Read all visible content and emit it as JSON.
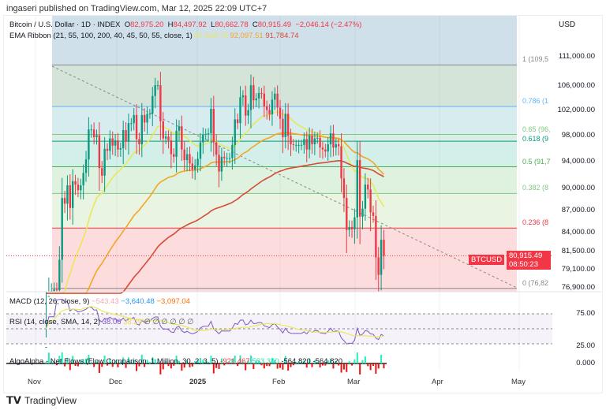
{
  "publisher": "ingaseri published on TradingView.com, Mar 12, 2025 22:09 UTC+7",
  "currency": "USD",
  "legend": {
    "symbol": "Bitcoin / U.S. Dollar · 1D · INDEX",
    "o_label": "O",
    "o": "82,975.20",
    "h_label": "H",
    "h": "84,497.92",
    "l_label": "L",
    "l": "80,662.78",
    "c_label": "C",
    "c": "80,915.49",
    "change": "−2,046.14 (−2.47%)",
    "ema_title": "EMA Ribbon (21, 55, 100, 200, 40, 45, 50, 55, close, 1)",
    "ema_v1": "87,518.70",
    "ema_v2": "92,097.51",
    "ema_v3": "91,784.74"
  },
  "macd": {
    "title": "MACD (12, 26, close, 9)",
    "v1": "−543.43",
    "v2": "−3,640.48",
    "v3": "−3,097.04"
  },
  "rsi": {
    "title": "RSI (14, close, SMA, 14, 2)",
    "v1": "38.06",
    "v2": "38.29",
    "extra": "∅ ∅ ∅ ∅ ∅ ∅",
    "upper": "75.00",
    "lower": "25.00"
  },
  "flows": {
    "title": "AlgoAlpha - Net Flows (Flow Comparison, 1 Million, 30, 2, 3, 5)",
    "v1": "-921.467",
    "v2": "563.340",
    "v3": "-564.820",
    "v4": "-564.820",
    "zero": "0.000"
  },
  "price_tag": {
    "symbol": "BTCUSD",
    "price": "80,915.49",
    "countdown": "08:50:23"
  },
  "footer": "TradingView",
  "colors": {
    "up": "#089981",
    "down": "#f23645",
    "ema21": "#e8e85a",
    "ema55": "#f5a623",
    "ema100": "#d94a38",
    "rsi": "#7e57c2"
  },
  "chart_data": {
    "type": "candlestick",
    "scale": "log",
    "ylim": [
      76900,
      113000
    ],
    "y_ticks": [
      "111,000.00",
      "106,000.00",
      "102,000.00",
      "98,000.00",
      "94,000.00",
      "90,000.00",
      "87,000.00",
      "84,000.00",
      "81,500.00",
      "79,100.00",
      "76,900.00"
    ],
    "y_tick_values": [
      111000,
      106000,
      102000,
      98000,
      94000,
      90000,
      87000,
      84000,
      81500,
      79100,
      76900
    ],
    "x_ticks": [
      "Nov",
      "Dec",
      "2025",
      "Feb",
      "Mar",
      "Apr",
      "May"
    ],
    "start_date": "2024-11-05",
    "closes": [
      70000,
      75900,
      76500,
      76700,
      76600,
      80400,
      88700,
      87900,
      90500,
      87300,
      91100,
      90600,
      89800,
      90500,
      92300,
      94300,
      98900,
      98900,
      97700,
      98000,
      93000,
      91900,
      95900,
      95600,
      97500,
      96400,
      97200,
      95800,
      96000,
      98800,
      97000,
      99900,
      99900,
      101200,
      97400,
      96600,
      101200,
      100000,
      101400,
      101400,
      104300,
      106100,
      106100,
      100200,
      97500,
      97800,
      97200,
      95100,
      94700,
      98700,
      99400,
      95800,
      94200,
      95100,
      93700,
      92800,
      93400,
      94400,
      96900,
      98100,
      98200,
      98300,
      102200,
      96900,
      95000,
      92500,
      94700,
      94500,
      94500,
      94500,
      96500,
      100500,
      99900,
      104100,
      104400,
      101100,
      102000,
      106100,
      103600,
      103900,
      104800,
      104700,
      102600,
      102000,
      101300,
      103700,
      104700,
      102400,
      100600,
      97700,
      101400,
      97900,
      96600,
      96500,
      96500,
      96500,
      96500,
      97400,
      95800,
      97900,
      96600,
      97500,
      97600,
      96100,
      95800,
      95500,
      96600,
      98300,
      96100,
      96600,
      96300,
      91500,
      88700,
      84300,
      84700,
      84400,
      86000,
      94200,
      86100,
      87200,
      90600,
      89900,
      86700,
      86200,
      80700,
      78500,
      83000,
      80915
    ],
    "fib": {
      "low": 76826,
      "high": 109588,
      "levels": [
        {
          "ratio": 1,
          "label": "1 (109,5",
          "color": "#888888"
        },
        {
          "ratio": 0.786,
          "label": "0.786 (1",
          "color": "#64b5f6"
        },
        {
          "ratio": 0.65,
          "label": "0.65 (96,",
          "color": "#81c784"
        },
        {
          "ratio": 0.618,
          "label": "0.618 (9",
          "color": "#089981"
        },
        {
          "ratio": 0.5,
          "label": "0.5 (91,7",
          "color": "#4caf50"
        },
        {
          "ratio": 0.382,
          "label": "0.382 (8",
          "color": "#81c784"
        },
        {
          "ratio": 0.236,
          "label": "0.236 (8",
          "color": "#f23645"
        },
        {
          "ratio": 0,
          "label": "0 (76,82",
          "color": "#888888"
        }
      ]
    }
  }
}
